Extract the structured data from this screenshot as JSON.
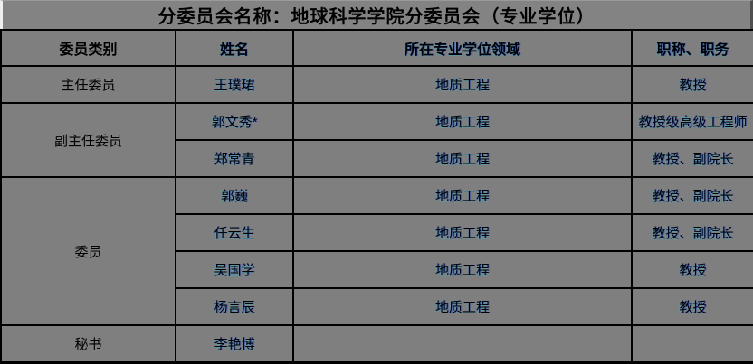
{
  "title": "分委员会名称：地球科学学院分委员会（专业学位）",
  "table": {
    "headers": [
      "委员类别",
      "姓名",
      "所在专业学位领域",
      "职称、职务"
    ],
    "rows": [
      {
        "category": "主任委员",
        "category_rowspan": 1,
        "name": "王璞珺",
        "field": "地质工程",
        "position": "教授"
      },
      {
        "category": "副主任委员",
        "category_rowspan": 2,
        "name": "郭文秀*",
        "field": "地质工程",
        "position": "教授级高级工程师"
      },
      {
        "name": "郑常青",
        "field": "地质工程",
        "position": "教授、副院长"
      },
      {
        "category": "委员",
        "category_rowspan": 4,
        "name": "郭巍",
        "field": "地质工程",
        "position": "教授、副院长"
      },
      {
        "name": "任云生",
        "field": "地质工程",
        "position": "教授、副院长"
      },
      {
        "name": "吴国学",
        "field": "地质工程",
        "position": "教授"
      },
      {
        "name": "杨言辰",
        "field": "地质工程",
        "position": "教授"
      },
      {
        "category": "秘书",
        "category_rowspan": 1,
        "name": "李艳博",
        "field": "",
        "position": ""
      }
    ]
  },
  "colors": {
    "table_background": "#7f7f7f",
    "title_background": "#838383",
    "border": "#000000",
    "text": "#000000",
    "fringe_blue": "#2846ff",
    "bevel_light": "#eeeeee",
    "bevel_dark": "#4f4f4f"
  }
}
